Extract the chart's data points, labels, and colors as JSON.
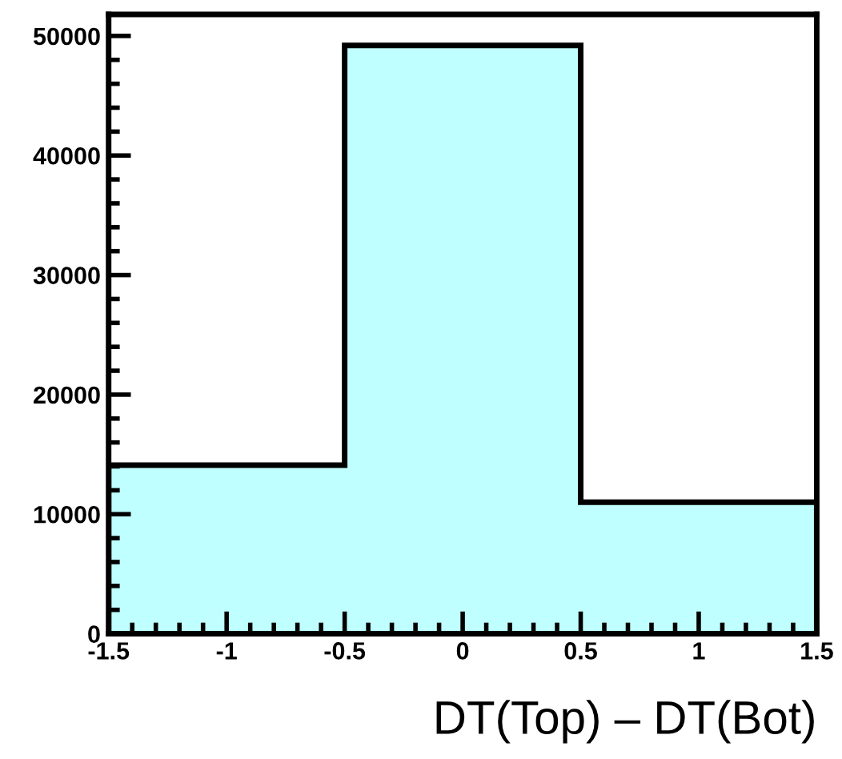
{
  "chart_data": {
    "type": "histogram",
    "xlabel": "DT(Top) – DT(Bot)",
    "bins": [
      -1.5,
      -0.5,
      0.5,
      1.5
    ],
    "values": [
      14100,
      49200,
      11000
    ],
    "color": "#c0ffff",
    "xlim": [
      -1.5,
      1.5
    ],
    "xticks": [
      -1.5,
      -1,
      -0.5,
      0,
      0.5,
      1,
      1.5
    ],
    "ylim": [
      0,
      51800
    ],
    "yticks": [
      0,
      10000,
      20000,
      30000,
      40000,
      50000
    ],
    "grid": false,
    "legend": false
  }
}
